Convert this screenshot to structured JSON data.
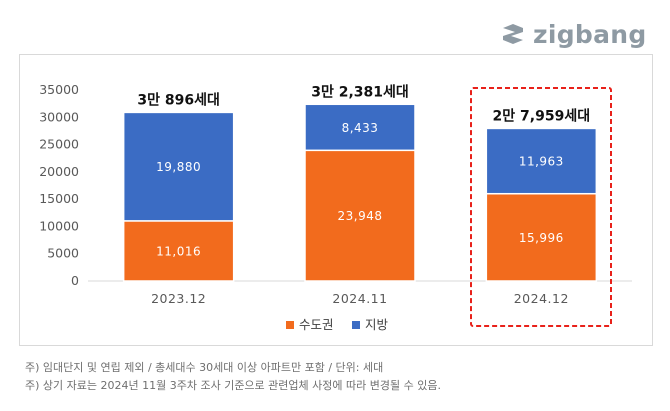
{
  "logo": {
    "text": "zigbang",
    "icon": "zigbang-logo-icon"
  },
  "chart_data": {
    "type": "bar",
    "stacked": true,
    "categories": [
      "2023.12",
      "2024.11",
      "2024.12"
    ],
    "series": [
      {
        "name": "수도권",
        "color": "#f26b1d",
        "values": [
          11016,
          23948,
          15996
        ],
        "labels": [
          "11,016",
          "23,948",
          "15,996"
        ]
      },
      {
        "name": "지방",
        "color": "#3b6cc4",
        "values": [
          19880,
          8433,
          11963
        ],
        "labels": [
          "19,880",
          "8,433",
          "11,963"
        ]
      }
    ],
    "totals": [
      "3만 896세대",
      "3만 2,381세대",
      "2만 7,959세대"
    ],
    "ylim": [
      0,
      35000
    ],
    "yticks": [
      0,
      5000,
      10000,
      15000,
      20000,
      25000,
      30000,
      35000
    ],
    "ytick_labels": [
      "0",
      "5000",
      "10000",
      "15000",
      "20000",
      "25000",
      "30000",
      "35000"
    ],
    "grid": false,
    "legend_position": "bottom",
    "highlight_category": "2024.12",
    "highlight_color": "#e8211a",
    "title": "",
    "xlabel": "",
    "ylabel": ""
  },
  "footnotes": [
    "주) 임대단지 및 연립 제외 / 총세대수 30세대 이상 아파트만 포함 / 단위: 세대",
    "주) 상기 자료는 2024년 11월 3주차 조사 기준으로 관련업체 사정에 따라 변경될 수 있음."
  ]
}
